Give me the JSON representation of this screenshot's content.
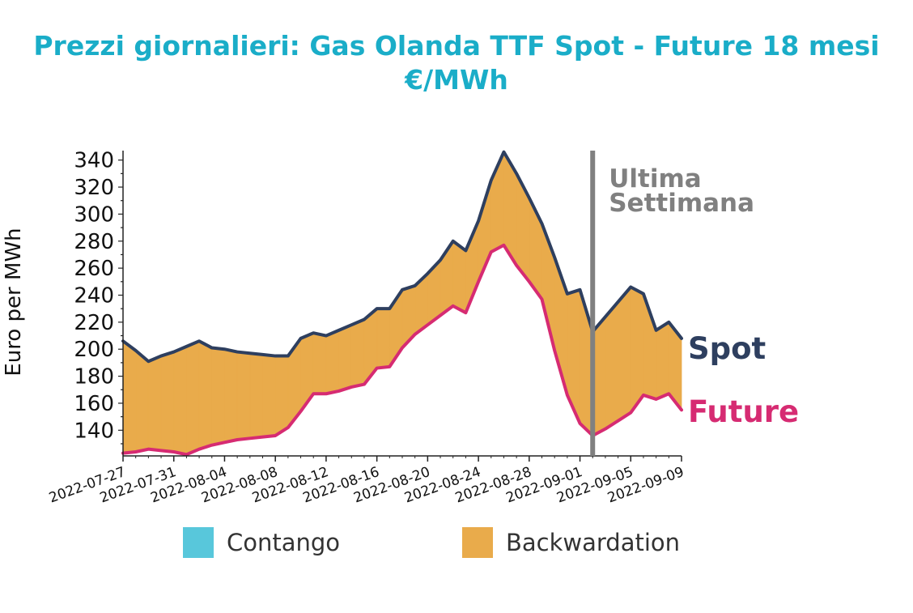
{
  "chart_data": {
    "type": "area",
    "title": "Prezzi giornalieri: Gas Olanda TTF Spot - Future 18 mesi",
    "subtitle": "€/MWh",
    "ylabel": "Euro per MWh",
    "xlabel": "",
    "ylim": [
      121,
      347
    ],
    "y_ticks": [
      140,
      160,
      180,
      200,
      220,
      240,
      260,
      280,
      300,
      320,
      340
    ],
    "x_ticks": [
      "2022-07-27",
      "2022-07-31",
      "2022-08-04",
      "2022-08-08",
      "2022-08-12",
      "2022-08-16",
      "2022-08-20",
      "2022-08-24",
      "2022-08-28",
      "2022-09-01",
      "2022-09-05",
      "2022-09-09"
    ],
    "x": [
      "2022-07-27",
      "2022-07-28",
      "2022-07-29",
      "2022-07-30",
      "2022-07-31",
      "2022-08-01",
      "2022-08-02",
      "2022-08-03",
      "2022-08-04",
      "2022-08-05",
      "2022-08-06",
      "2022-08-07",
      "2022-08-08",
      "2022-08-09",
      "2022-08-10",
      "2022-08-11",
      "2022-08-12",
      "2022-08-13",
      "2022-08-14",
      "2022-08-15",
      "2022-08-16",
      "2022-08-17",
      "2022-08-18",
      "2022-08-19",
      "2022-08-20",
      "2022-08-21",
      "2022-08-22",
      "2022-08-23",
      "2022-08-24",
      "2022-08-25",
      "2022-08-26",
      "2022-08-27",
      "2022-08-28",
      "2022-08-29",
      "2022-08-30",
      "2022-08-31",
      "2022-09-01",
      "2022-09-02",
      "2022-09-03",
      "2022-09-04",
      "2022-09-05",
      "2022-09-06",
      "2022-09-07",
      "2022-09-08",
      "2022-09-09"
    ],
    "series": [
      {
        "name": "Spot",
        "color": "#2e3f5f",
        "values": [
          206,
          199,
          191,
          195,
          198,
          202,
          206,
          201,
          200,
          198,
          197,
          196,
          195,
          195,
          208,
          212,
          210,
          214,
          218,
          222,
          230,
          230,
          244,
          247,
          256,
          266,
          280,
          273,
          295,
          325,
          346,
          330,
          312,
          293,
          268,
          241,
          244,
          213,
          224,
          235,
          246,
          241,
          214,
          220,
          208
        ]
      },
      {
        "name": "Future",
        "color": "#d62b72",
        "values": [
          123,
          124,
          126,
          125,
          124,
          122,
          126,
          129,
          131,
          133,
          134,
          135,
          136,
          142,
          154,
          167,
          167,
          169,
          172,
          174,
          186,
          187,
          201,
          211,
          218,
          225,
          232,
          227,
          250,
          272,
          277,
          262,
          250,
          237,
          199,
          166,
          145,
          136,
          141,
          147,
          153,
          166,
          163,
          167,
          155
        ]
      }
    ],
    "fill_colors": {
      "backwardation": "#e9ab4b",
      "contango": "#58c7db"
    },
    "annotation": {
      "date": "2022-09-02",
      "lines": [
        "Ultima",
        "Settimana"
      ],
      "color": "#808080"
    },
    "legend": {
      "placement": "bottom",
      "items": [
        {
          "label": "Contango",
          "color": "#58c7db"
        },
        {
          "label": "Backwardation",
          "color": "#e9ab4b"
        }
      ]
    },
    "grid": false
  }
}
